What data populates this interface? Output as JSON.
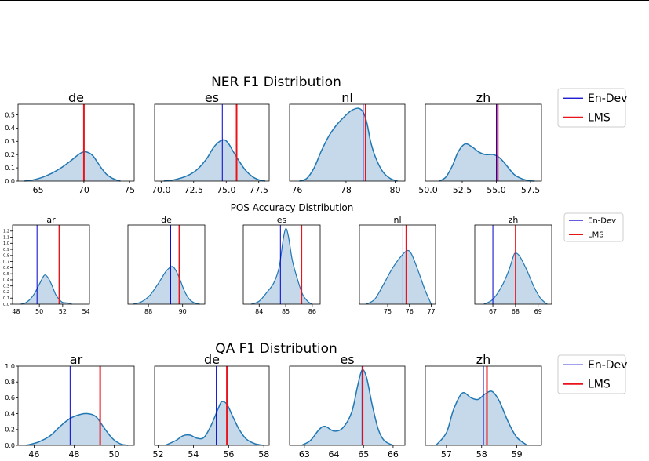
{
  "colors": {
    "kde_line": "#1f77b4",
    "kde_fill": "#c6d9ea",
    "en_dev": "#0000cc",
    "lms": "#e8141a"
  },
  "legend_labels": [
    "En-Dev",
    "LMS"
  ],
  "chart_data": [
    {
      "type": "area",
      "title": "NER F1 Distribution",
      "legend": {
        "placement": "right",
        "labels": [
          "En-Dev",
          "LMS"
        ]
      },
      "ylim": [
        0,
        0.58
      ],
      "yticks": [
        "0.0",
        "0.1",
        "0.2",
        "0.3",
        "0.4",
        "0.5"
      ],
      "subplots": [
        {
          "lang": "de",
          "xlim": [
            62.8,
            75.5
          ],
          "xticks": [
            "65",
            "70",
            "75"
          ],
          "en_dev": 70.0,
          "lms": 70.0,
          "curve": [
            [
              63.5,
              0.0
            ],
            [
              64.5,
              0.01
            ],
            [
              65.5,
              0.03
            ],
            [
              66.5,
              0.06
            ],
            [
              67.5,
              0.1
            ],
            [
              68.5,
              0.15
            ],
            [
              69.5,
              0.205
            ],
            [
              70.0,
              0.22
            ],
            [
              70.5,
              0.215
            ],
            [
              71.0,
              0.19
            ],
            [
              71.5,
              0.14
            ],
            [
              72.0,
              0.09
            ],
            [
              72.5,
              0.05
            ],
            [
              73.0,
              0.025
            ],
            [
              73.5,
              0.01
            ],
            [
              74.0,
              0.0
            ]
          ]
        },
        {
          "lang": "es",
          "xlim": [
            69.5,
            78.3
          ],
          "xticks": [
            "70.0",
            "72.5",
            "75.0",
            "77.5"
          ],
          "en_dev": 74.7,
          "lms": 75.8,
          "curve": [
            [
              70.2,
              0.0
            ],
            [
              71.0,
              0.01
            ],
            [
              72.0,
              0.04
            ],
            [
              72.8,
              0.09
            ],
            [
              73.5,
              0.17
            ],
            [
              74.0,
              0.25
            ],
            [
              74.5,
              0.3
            ],
            [
              74.9,
              0.31
            ],
            [
              75.2,
              0.28
            ],
            [
              75.5,
              0.23
            ],
            [
              76.0,
              0.15
            ],
            [
              76.5,
              0.08
            ],
            [
              77.0,
              0.035
            ],
            [
              77.5,
              0.01
            ],
            [
              78.0,
              0.0
            ]
          ]
        },
        {
          "lang": "nl",
          "xlim": [
            75.7,
            80.4
          ],
          "xticks": [
            "76",
            "78",
            "80"
          ],
          "en_dev": 78.7,
          "lms": 78.8,
          "curve": [
            [
              76.1,
              0.0
            ],
            [
              76.4,
              0.02
            ],
            [
              76.7,
              0.1
            ],
            [
              77.0,
              0.23
            ],
            [
              77.3,
              0.34
            ],
            [
              77.6,
              0.42
            ],
            [
              77.9,
              0.48
            ],
            [
              78.2,
              0.53
            ],
            [
              78.5,
              0.55
            ],
            [
              78.7,
              0.52
            ],
            [
              78.85,
              0.44
            ],
            [
              79.0,
              0.3
            ],
            [
              79.2,
              0.18
            ],
            [
              79.5,
              0.07
            ],
            [
              79.8,
              0.02
            ],
            [
              80.1,
              0.0
            ]
          ]
        },
        {
          "lang": "zh",
          "xlim": [
            49.8,
            58.3
          ],
          "xticks": [
            "50.0",
            "52.5",
            "55.0",
            "57.5"
          ],
          "en_dev": 55.0,
          "lms": 55.1,
          "curve": [
            [
              50.8,
              0.0
            ],
            [
              51.3,
              0.03
            ],
            [
              51.8,
              0.12
            ],
            [
              52.2,
              0.22
            ],
            [
              52.7,
              0.28
            ],
            [
              53.2,
              0.26
            ],
            [
              53.7,
              0.22
            ],
            [
              54.2,
              0.2
            ],
            [
              54.8,
              0.2
            ],
            [
              55.3,
              0.17
            ],
            [
              55.8,
              0.11
            ],
            [
              56.3,
              0.05
            ],
            [
              56.8,
              0.02
            ],
            [
              57.3,
              0.005
            ],
            [
              57.8,
              0.0
            ]
          ]
        }
      ]
    },
    {
      "type": "area",
      "title": "POS Accuracy Distribution",
      "legend": {
        "placement": "right",
        "labels": [
          "En-Dev",
          "LMS"
        ]
      },
      "ylim": [
        0,
        1.3
      ],
      "yticks": [
        "0.0",
        "0.1",
        "0.2",
        "0.3",
        "0.4",
        "0.5",
        "0.6",
        "0.7",
        "0.8",
        "0.9",
        "1.0",
        "1.1",
        "1.2"
      ],
      "subplots": [
        {
          "lang": "ar",
          "xlim": [
            47.7,
            54.3
          ],
          "xticks": [
            "48",
            "50",
            "52",
            "54"
          ],
          "en_dev": 49.8,
          "lms": 51.7,
          "curve": [
            [
              48.4,
              0.0
            ],
            [
              48.8,
              0.02
            ],
            [
              49.2,
              0.08
            ],
            [
              49.6,
              0.18
            ],
            [
              50.0,
              0.33
            ],
            [
              50.3,
              0.44
            ],
            [
              50.5,
              0.48
            ],
            [
              50.8,
              0.42
            ],
            [
              51.1,
              0.3
            ],
            [
              51.4,
              0.16
            ],
            [
              51.7,
              0.08
            ],
            [
              52.0,
              0.03
            ],
            [
              52.4,
              0.02
            ],
            [
              52.8,
              0.0
            ]
          ]
        },
        {
          "lang": "de",
          "xlim": [
            86.8,
            91.3
          ],
          "xticks": [
            "88",
            "90"
          ],
          "en_dev": 89.3,
          "lms": 89.8,
          "curve": [
            [
              87.1,
              0.0
            ],
            [
              87.6,
              0.04
            ],
            [
              88.1,
              0.15
            ],
            [
              88.6,
              0.35
            ],
            [
              89.0,
              0.53
            ],
            [
              89.3,
              0.61
            ],
            [
              89.5,
              0.6
            ],
            [
              89.8,
              0.44
            ],
            [
              90.1,
              0.22
            ],
            [
              90.4,
              0.08
            ],
            [
              90.7,
              0.02
            ],
            [
              91.0,
              0.0
            ]
          ]
        },
        {
          "lang": "es",
          "xlim": [
            83.4,
            86.3
          ],
          "xticks": [
            "84",
            "85",
            "86"
          ],
          "en_dev": 84.8,
          "lms": 85.6,
          "curve": [
            [
              83.7,
              0.0
            ],
            [
              84.0,
              0.05
            ],
            [
              84.3,
              0.2
            ],
            [
              84.55,
              0.35
            ],
            [
              84.75,
              0.6
            ],
            [
              84.9,
              1.05
            ],
            [
              85.0,
              1.24
            ],
            [
              85.1,
              1.12
            ],
            [
              85.25,
              0.72
            ],
            [
              85.45,
              0.4
            ],
            [
              85.65,
              0.15
            ],
            [
              85.85,
              0.04
            ],
            [
              86.0,
              0.0
            ]
          ]
        },
        {
          "lang": "nl",
          "xlim": [
            73.7,
            77.2
          ],
          "xticks": [
            "75",
            "76",
            "77"
          ],
          "en_dev": 75.7,
          "lms": 75.85,
          "curve": [
            [
              74.0,
              0.0
            ],
            [
              74.4,
              0.08
            ],
            [
              74.8,
              0.32
            ],
            [
              75.2,
              0.58
            ],
            [
              75.6,
              0.78
            ],
            [
              75.9,
              0.88
            ],
            [
              76.1,
              0.82
            ],
            [
              76.4,
              0.55
            ],
            [
              76.7,
              0.25
            ],
            [
              77.0,
              0.0
            ]
          ]
        },
        {
          "lang": "zh",
          "xlim": [
            66.2,
            69.6
          ],
          "xticks": [
            "67",
            "68",
            "69"
          ],
          "en_dev": 67.0,
          "lms": 68.0,
          "curve": [
            [
              66.6,
              0.0
            ],
            [
              67.0,
              0.08
            ],
            [
              67.4,
              0.3
            ],
            [
              67.7,
              0.55
            ],
            [
              67.9,
              0.78
            ],
            [
              68.0,
              0.84
            ],
            [
              68.2,
              0.78
            ],
            [
              68.5,
              0.56
            ],
            [
              68.8,
              0.3
            ],
            [
              69.1,
              0.1
            ],
            [
              69.4,
              0.0
            ]
          ]
        }
      ]
    },
    {
      "type": "area",
      "title": "QA F1 Distribution",
      "legend": {
        "placement": "right",
        "labels": [
          "En-Dev",
          "LMS"
        ]
      },
      "ylim": [
        0,
        1.0
      ],
      "yticks": [
        "0.0",
        "0.2",
        "0.4",
        "0.6",
        "0.8",
        "1.0"
      ],
      "subplots": [
        {
          "lang": "ar",
          "xlim": [
            45.2,
            51.0
          ],
          "xticks": [
            "46",
            "48",
            "50"
          ],
          "en_dev": 47.8,
          "lms": 49.3,
          "curve": [
            [
              45.6,
              0.0
            ],
            [
              46.2,
              0.04
            ],
            [
              46.8,
              0.12
            ],
            [
              47.3,
              0.24
            ],
            [
              47.8,
              0.34
            ],
            [
              48.3,
              0.39
            ],
            [
              48.7,
              0.4
            ],
            [
              49.1,
              0.36
            ],
            [
              49.5,
              0.22
            ],
            [
              49.9,
              0.09
            ],
            [
              50.3,
              0.02
            ],
            [
              50.7,
              0.0
            ]
          ]
        },
        {
          "lang": "de",
          "xlim": [
            51.8,
            58.3
          ],
          "xticks": [
            "52",
            "54",
            "56",
            "58"
          ],
          "en_dev": 55.3,
          "lms": 55.9,
          "curve": [
            [
              52.4,
              0.0
            ],
            [
              53.0,
              0.06
            ],
            [
              53.4,
              0.12
            ],
            [
              53.8,
              0.13
            ],
            [
              54.2,
              0.09
            ],
            [
              54.6,
              0.1
            ],
            [
              55.0,
              0.25
            ],
            [
              55.4,
              0.46
            ],
            [
              55.6,
              0.55
            ],
            [
              55.9,
              0.52
            ],
            [
              56.2,
              0.38
            ],
            [
              56.6,
              0.2
            ],
            [
              57.0,
              0.08
            ],
            [
              57.5,
              0.02
            ],
            [
              58.0,
              0.0
            ]
          ]
        },
        {
          "lang": "es",
          "xlim": [
            62.5,
            66.4
          ],
          "xticks": [
            "63",
            "64",
            "65",
            "66"
          ],
          "en_dev": 64.95,
          "lms": 64.97,
          "curve": [
            [
              62.9,
              0.0
            ],
            [
              63.2,
              0.06
            ],
            [
              63.5,
              0.2
            ],
            [
              63.7,
              0.24
            ],
            [
              64.0,
              0.18
            ],
            [
              64.3,
              0.22
            ],
            [
              64.6,
              0.42
            ],
            [
              64.8,
              0.75
            ],
            [
              64.95,
              0.95
            ],
            [
              65.1,
              0.86
            ],
            [
              65.3,
              0.5
            ],
            [
              65.5,
              0.2
            ],
            [
              65.7,
              0.06
            ],
            [
              66.0,
              0.0
            ]
          ]
        },
        {
          "lang": "zh",
          "xlim": [
            56.4,
            59.7
          ],
          "xticks": [
            "57",
            "58",
            "59"
          ],
          "en_dev": 58.05,
          "lms": 58.15,
          "curve": [
            [
              56.7,
              0.0
            ],
            [
              57.0,
              0.16
            ],
            [
              57.2,
              0.45
            ],
            [
              57.45,
              0.66
            ],
            [
              57.7,
              0.6
            ],
            [
              57.9,
              0.58
            ],
            [
              58.1,
              0.65
            ],
            [
              58.3,
              0.68
            ],
            [
              58.5,
              0.56
            ],
            [
              58.75,
              0.3
            ],
            [
              59.0,
              0.1
            ],
            [
              59.3,
              0.0
            ]
          ]
        }
      ]
    }
  ]
}
